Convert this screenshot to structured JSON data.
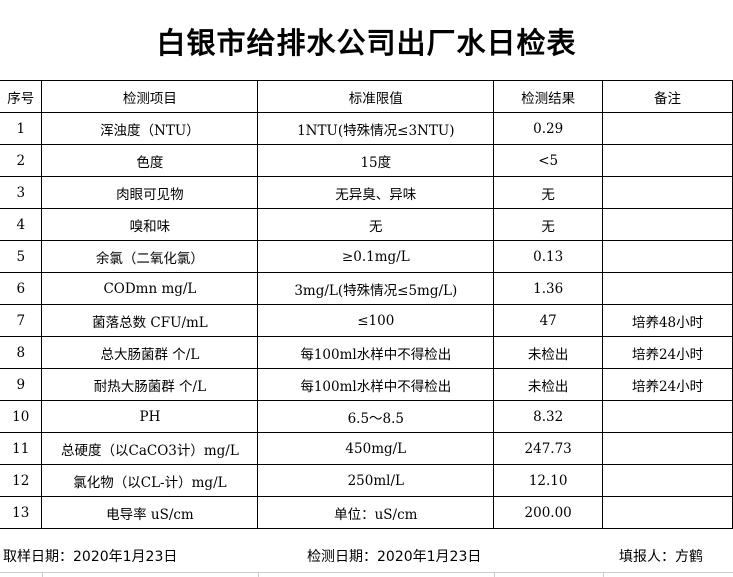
{
  "title": "白银市给排水公司出厂水日检表",
  "headers": [
    "序号",
    "检测项目",
    "标准限值",
    "检测结果",
    "备注"
  ],
  "rows": [
    [
      "1",
      "浑浊度（NTU）",
      "1NTU(特殊情况≤3NTU)",
      "0.29",
      ""
    ],
    [
      "2",
      "色度",
      "15度",
      "<5",
      ""
    ],
    [
      "3",
      "肉眼可见物",
      "无异臭、异味",
      "无",
      ""
    ],
    [
      "4",
      "嗅和味",
      "无",
      "无",
      ""
    ],
    [
      "5",
      "余氯（二氧化氯）",
      "≥0.1mg/L",
      "0.13",
      ""
    ],
    [
      "6",
      "CODmn mg/L",
      "3mg/L(特殊情况≤5mg/L)",
      "1.36",
      ""
    ],
    [
      "7",
      "菌落总数  CFU/mL",
      "≤100",
      "47",
      "培养48小时"
    ],
    [
      "8",
      "总大肠菌群 个/L",
      "每100ml水样中不得检出",
      "未检出",
      "培养24小时"
    ],
    [
      "9",
      "耐热大肠菌群 个/L",
      "每100ml水样中不得检出",
      "未检出",
      "培养24小时"
    ],
    [
      "10",
      "PH",
      "6.5～8.5",
      "8.32",
      ""
    ],
    [
      "11",
      "总硬度（以CaCO3计）mg/L",
      "450mg/L",
      "247.73",
      ""
    ],
    [
      "12",
      "氯化物（以CL-计）mg/L",
      "250ml/L",
      "12.10",
      ""
    ],
    [
      "13",
      "电导率 uS/cm",
      "单位：uS/cm",
      "200.00",
      ""
    ]
  ],
  "footer": {
    "sample_date": "取样日期：2020年1月23日",
    "test_date": "检测日期：2020年1月23日",
    "reporter": "填报人：方鹤"
  }
}
